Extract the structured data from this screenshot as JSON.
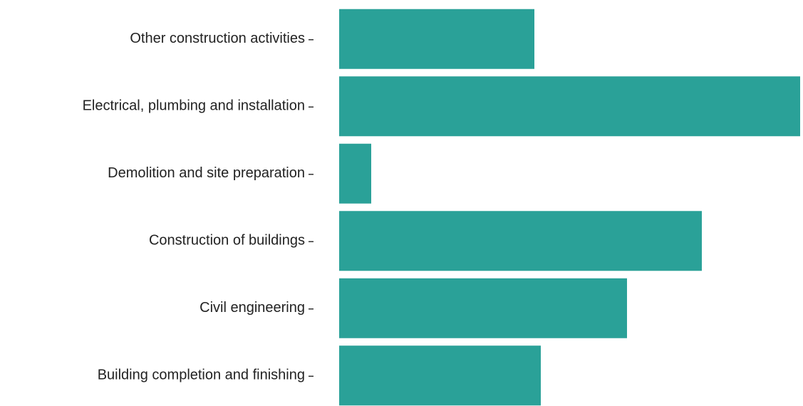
{
  "chart_data": {
    "type": "bar",
    "orientation": "horizontal",
    "categories": [
      "Other construction activities",
      "Electrical, plumbing and installation",
      "Demolition and site preparation",
      "Construction of buildings",
      "Civil engineering",
      "Building completion and finishing"
    ],
    "values": [
      274,
      647,
      45,
      509,
      404,
      283
    ],
    "color": "#2aa198",
    "xlim": [
      0,
      651
    ]
  }
}
